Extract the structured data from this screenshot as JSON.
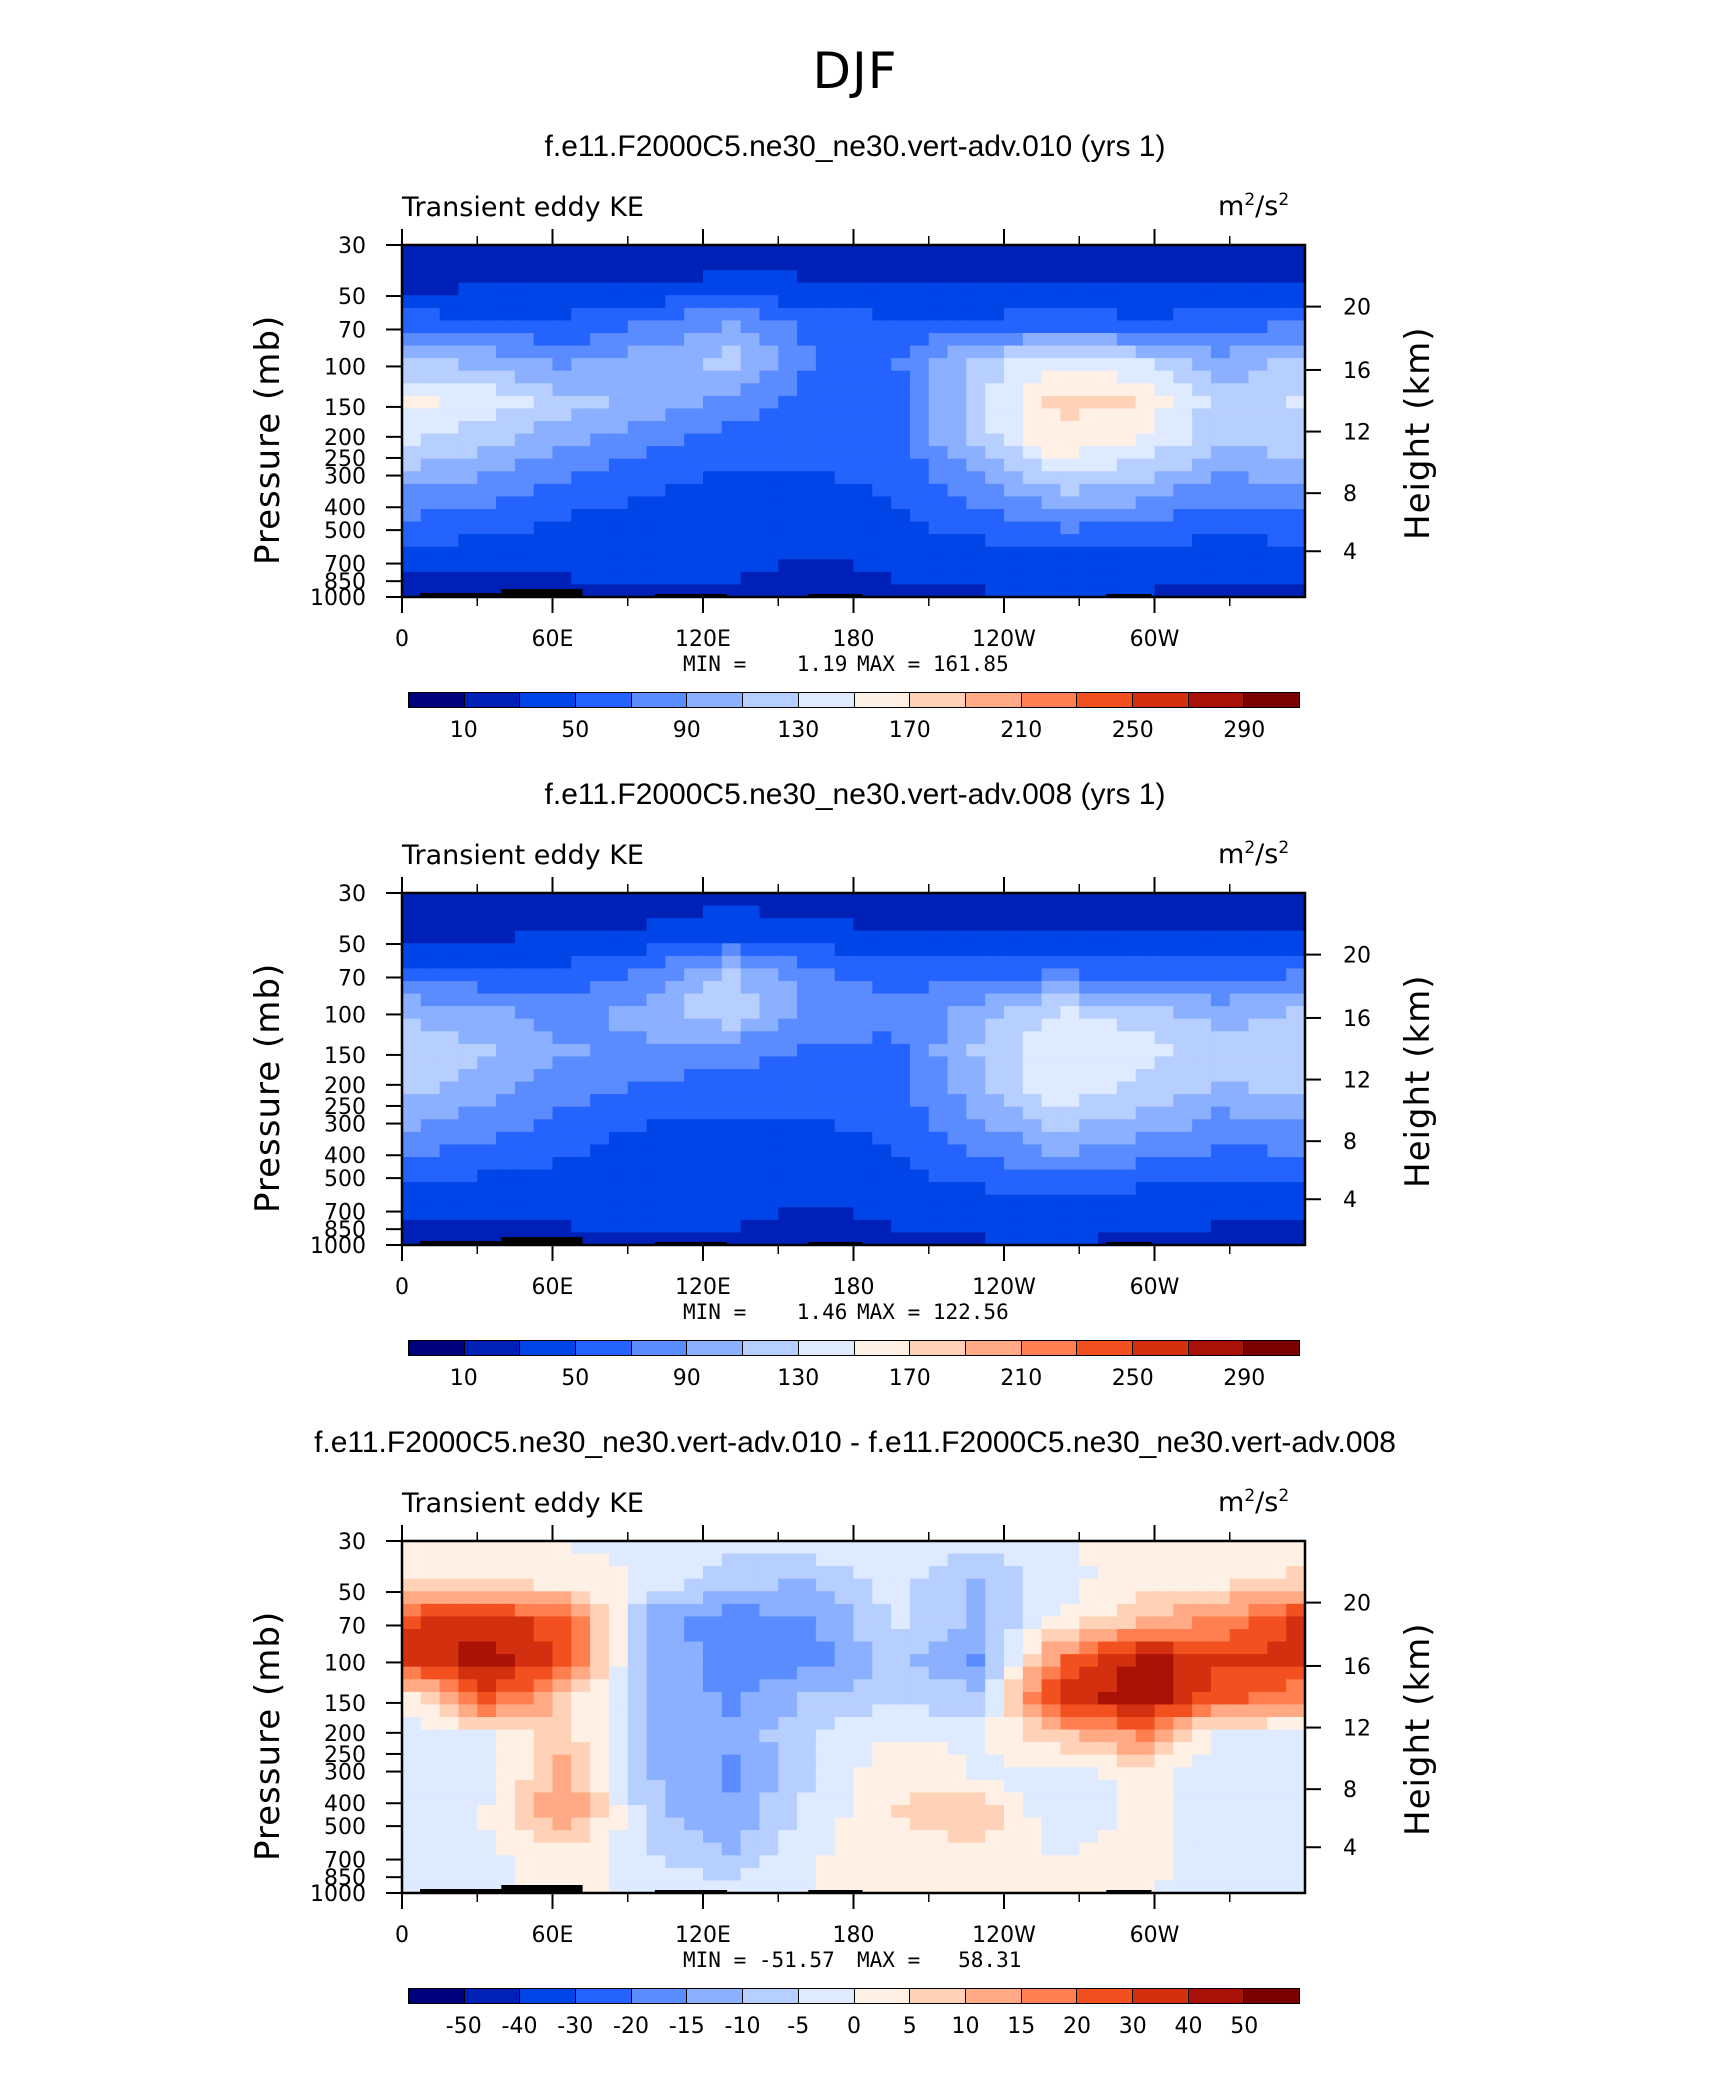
{
  "figure_title": "DJF",
  "colors": {
    "seq_palette": [
      "#00007f",
      "#0021b8",
      "#0045e8",
      "#2563ff",
      "#5a8cff",
      "#8bb0ff",
      "#b7cfff",
      "#ddeaff",
      "#fff0e6",
      "#ffd2b8",
      "#ffaa84",
      "#ff7f50",
      "#f2501e",
      "#d2300f",
      "#aa1208",
      "#7a0000"
    ],
    "diff_palette": [
      "#00007f",
      "#0021b8",
      "#0045e8",
      "#2563ff",
      "#5a8cff",
      "#8bb0ff",
      "#b7cfff",
      "#ddeaff",
      "#fff0e6",
      "#ffd2b8",
      "#ffaa84",
      "#ff7f50",
      "#f2501e",
      "#d2300f",
      "#aa1208",
      "#7a0000"
    ],
    "topography": "#000000"
  },
  "chart_data": [
    {
      "type": "heatmap",
      "title": "f.e11.F2000C5.ne30_ne30.vert-adv.010 (yrs 1)",
      "left_string": "Transient eddy KE",
      "units": {
        "base": "m",
        "exp": "2",
        "sep": "/s",
        "exp2": "2"
      },
      "ylabel": "Pressure  (mb)",
      "ylabel_right": "Height  (km)",
      "x_ticks": [
        "0",
        "60E",
        "120E",
        "180",
        "120W",
        "60W"
      ],
      "y_ticks": [
        "30",
        "50",
        "70",
        "100",
        "150",
        "200",
        "250",
        "300",
        "400",
        "500",
        "700",
        "850",
        "1000"
      ],
      "y_right_ticks": [
        "20",
        "16",
        "12",
        "8",
        "4"
      ],
      "min_label": "MIN =    1.19",
      "max_label": "MAX = 161.85",
      "min": 1.19,
      "max": 161.85,
      "colorbar_labels": [
        "10",
        "50",
        "90",
        "130",
        "170",
        "210",
        "250",
        "290"
      ],
      "field": [
        [
          0.1,
          0.1,
          0.1,
          0.1,
          0.1,
          0.1,
          0.1,
          0.1,
          0.1,
          0.1,
          0.1,
          0.1
        ],
        [
          0.1,
          0.12,
          0.12,
          0.12,
          0.14,
          0.13,
          0.12,
          0.12,
          0.12,
          0.12,
          0.12,
          0.12
        ],
        [
          0.22,
          0.2,
          0.2,
          0.25,
          0.32,
          0.22,
          0.2,
          0.2,
          0.22,
          0.2,
          0.22,
          0.25
        ],
        [
          0.38,
          0.36,
          0.3,
          0.35,
          0.4,
          0.25,
          0.24,
          0.4,
          0.5,
          0.44,
          0.34,
          0.4
        ],
        [
          0.52,
          0.48,
          0.4,
          0.35,
          0.3,
          0.22,
          0.22,
          0.42,
          0.58,
          0.56,
          0.4,
          0.45
        ],
        [
          0.45,
          0.4,
          0.32,
          0.27,
          0.22,
          0.2,
          0.22,
          0.4,
          0.56,
          0.5,
          0.38,
          0.42
        ],
        [
          0.34,
          0.3,
          0.25,
          0.2,
          0.18,
          0.18,
          0.2,
          0.3,
          0.42,
          0.38,
          0.3,
          0.32
        ],
        [
          0.25,
          0.22,
          0.18,
          0.16,
          0.16,
          0.16,
          0.18,
          0.22,
          0.28,
          0.26,
          0.22,
          0.24
        ],
        [
          0.16,
          0.15,
          0.14,
          0.14,
          0.14,
          0.12,
          0.14,
          0.15,
          0.16,
          0.16,
          0.15,
          0.16
        ],
        [
          0.08,
          0.1,
          0.11,
          0.12,
          0.12,
          0.1,
          0.11,
          0.12,
          0.12,
          0.12,
          0.11,
          0.1
        ]
      ]
    },
    {
      "type": "heatmap",
      "title": "f.e11.F2000C5.ne30_ne30.vert-adv.008 (yrs 1)",
      "left_string": "Transient eddy KE",
      "units": {
        "base": "m",
        "exp": "2",
        "sep": "/s",
        "exp2": "2"
      },
      "ylabel": "Pressure  (mb)",
      "ylabel_right": "Height  (km)",
      "x_ticks": [
        "0",
        "60E",
        "120E",
        "180",
        "120W",
        "60W"
      ],
      "y_ticks": [
        "30",
        "50",
        "70",
        "100",
        "150",
        "200",
        "250",
        "300",
        "400",
        "500",
        "700",
        "850",
        "1000"
      ],
      "y_right_ticks": [
        "20",
        "16",
        "12",
        "8",
        "4"
      ],
      "min_label": "MIN =    1.46",
      "max_label": "MAX = 122.56",
      "min": 1.46,
      "max": 122.56,
      "colorbar_labels": [
        "10",
        "50",
        "90",
        "130",
        "170",
        "210",
        "250",
        "290"
      ],
      "field": [
        [
          0.1,
          0.1,
          0.1,
          0.1,
          0.1,
          0.1,
          0.1,
          0.1,
          0.1,
          0.1,
          0.1,
          0.1
        ],
        [
          0.1,
          0.11,
          0.12,
          0.13,
          0.16,
          0.14,
          0.12,
          0.12,
          0.12,
          0.12,
          0.12,
          0.12
        ],
        [
          0.2,
          0.2,
          0.2,
          0.26,
          0.38,
          0.26,
          0.22,
          0.22,
          0.24,
          0.22,
          0.22,
          0.24
        ],
        [
          0.36,
          0.32,
          0.28,
          0.34,
          0.44,
          0.3,
          0.26,
          0.34,
          0.44,
          0.4,
          0.34,
          0.38
        ],
        [
          0.44,
          0.38,
          0.32,
          0.3,
          0.28,
          0.24,
          0.24,
          0.38,
          0.5,
          0.46,
          0.4,
          0.42
        ],
        [
          0.4,
          0.34,
          0.28,
          0.24,
          0.22,
          0.22,
          0.22,
          0.36,
          0.48,
          0.42,
          0.36,
          0.4
        ],
        [
          0.32,
          0.28,
          0.22,
          0.18,
          0.18,
          0.18,
          0.2,
          0.3,
          0.38,
          0.34,
          0.28,
          0.3
        ],
        [
          0.24,
          0.2,
          0.18,
          0.16,
          0.16,
          0.16,
          0.18,
          0.22,
          0.28,
          0.24,
          0.22,
          0.22
        ],
        [
          0.14,
          0.14,
          0.14,
          0.14,
          0.14,
          0.12,
          0.14,
          0.15,
          0.16,
          0.14,
          0.14,
          0.14
        ],
        [
          0.08,
          0.1,
          0.11,
          0.12,
          0.12,
          0.1,
          0.11,
          0.12,
          0.12,
          0.12,
          0.11,
          0.1
        ]
      ]
    },
    {
      "type": "heatmap",
      "title": "f.e11.F2000C5.ne30_ne30.vert-adv.010 - f.e11.F2000C5.ne30_ne30.vert-adv.008",
      "left_string": "Transient eddy KE",
      "units": {
        "base": "m",
        "exp": "2",
        "sep": "/s",
        "exp2": "2"
      },
      "ylabel": "Pressure  (mb)",
      "ylabel_right": "Height  (km)",
      "x_ticks": [
        "0",
        "60E",
        "120E",
        "180",
        "120W",
        "60W"
      ],
      "y_ticks": [
        "30",
        "50",
        "70",
        "100",
        "150",
        "200",
        "250",
        "300",
        "400",
        "500",
        "700",
        "850",
        "1000"
      ],
      "y_right_ticks": [
        "20",
        "16",
        "12",
        "8",
        "4"
      ],
      "min_label": "MIN = -51.57",
      "max_label": "MAX =   58.31",
      "min": -51.57,
      "max": 58.31,
      "colorbar_labels": [
        "-50",
        "-40",
        "-30",
        "-20",
        "-15",
        "-10",
        "-5",
        "0",
        "5",
        "10",
        "15",
        "20",
        "30",
        "40",
        "50"
      ],
      "field": [
        [
          0.52,
          0.5,
          0.5,
          0.48,
          0.46,
          0.48,
          0.5,
          0.48,
          0.5,
          0.52,
          0.52,
          0.52
        ],
        [
          0.56,
          0.55,
          0.52,
          0.5,
          0.4,
          0.38,
          0.46,
          0.36,
          0.48,
          0.52,
          0.54,
          0.58
        ],
        [
          0.8,
          0.84,
          0.78,
          0.34,
          0.28,
          0.3,
          0.45,
          0.36,
          0.5,
          0.62,
          0.7,
          0.84
        ],
        [
          0.84,
          0.92,
          0.8,
          0.34,
          0.3,
          0.28,
          0.4,
          0.3,
          0.72,
          0.9,
          0.82,
          0.84
        ],
        [
          0.5,
          0.8,
          0.6,
          0.36,
          0.3,
          0.38,
          0.42,
          0.4,
          0.84,
          0.92,
          0.78,
          0.7
        ],
        [
          0.44,
          0.48,
          0.6,
          0.36,
          0.32,
          0.44,
          0.5,
          0.48,
          0.6,
          0.7,
          0.46,
          0.48
        ],
        [
          0.44,
          0.46,
          0.66,
          0.38,
          0.3,
          0.44,
          0.56,
          0.5,
          0.46,
          0.52,
          0.46,
          0.44
        ],
        [
          0.46,
          0.5,
          0.7,
          0.4,
          0.32,
          0.46,
          0.56,
          0.62,
          0.44,
          0.52,
          0.46,
          0.46
        ],
        [
          0.48,
          0.48,
          0.54,
          0.44,
          0.38,
          0.5,
          0.52,
          0.54,
          0.5,
          0.52,
          0.48,
          0.48
        ],
        [
          0.48,
          0.48,
          0.52,
          0.48,
          0.46,
          0.5,
          0.5,
          0.52,
          0.5,
          0.5,
          0.48,
          0.48
        ]
      ]
    }
  ]
}
